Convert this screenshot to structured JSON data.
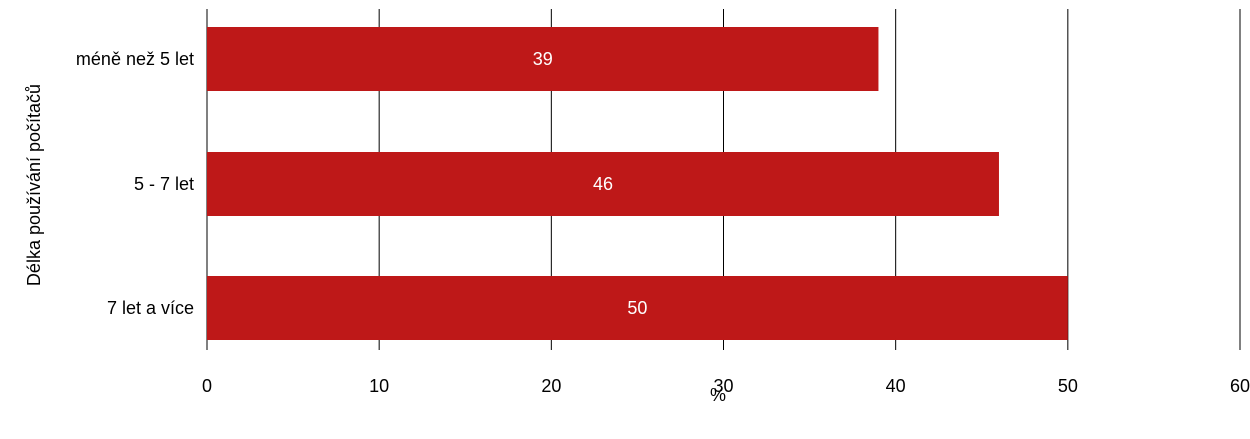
{
  "chart_data": {
    "type": "bar",
    "orientation": "horizontal",
    "categories": [
      "méně než 5 let",
      "5 - 7 let",
      "7 let a více"
    ],
    "values": [
      39,
      46,
      50
    ],
    "data_labels": [
      "39",
      "46",
      "50"
    ],
    "xlabel": "%",
    "ylabel": "Délka používání počítačů",
    "xlim": [
      0,
      60
    ],
    "x_ticks": [
      "0",
      "10",
      "20",
      "30",
      "40",
      "50",
      "60"
    ],
    "grid": "vertical",
    "legend": "none",
    "colors": {
      "bar": "#BE1818",
      "grid": "#000000",
      "text": "#000000",
      "data_label": "#FFFFFF"
    }
  }
}
